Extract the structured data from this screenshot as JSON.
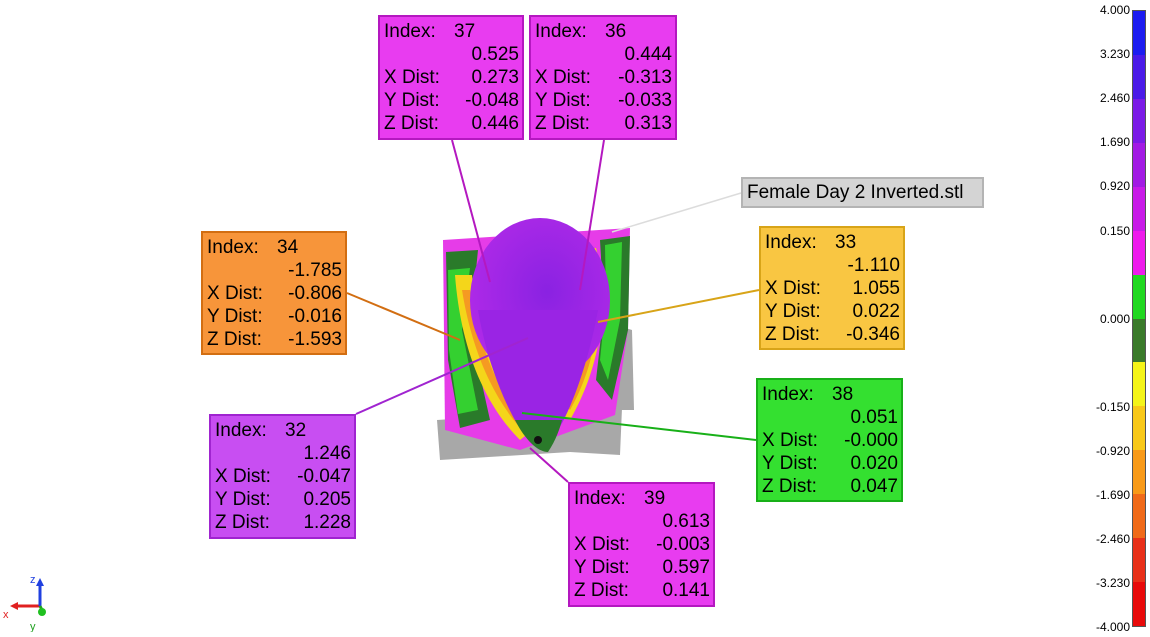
{
  "file_label": "Female Day 2 Inverted.stl",
  "callouts": [
    {
      "id": "37",
      "value": "0.525",
      "x": "0.273",
      "y": "-0.048",
      "z": "0.446",
      "color": "#e83cf0",
      "border": "#b418c0"
    },
    {
      "id": "36",
      "value": "0.444",
      "x": "-0.313",
      "y": "-0.033",
      "z": "0.313",
      "color": "#e83cf0",
      "border": "#b418c0"
    },
    {
      "id": "34",
      "value": "-1.785",
      "x": "-0.806",
      "y": "-0.016",
      "z": "-1.593",
      "color": "#f7953a",
      "border": "#d26e12"
    },
    {
      "id": "33",
      "value": "-1.110",
      "x": "1.055",
      "y": "0.022",
      "z": "-0.346",
      "color": "#f9c642",
      "border": "#d8a418"
    },
    {
      "id": "38",
      "value": "0.051",
      "x": "-0.000",
      "y": "0.020",
      "z": "0.047",
      "color": "#34e030",
      "border": "#18b018"
    },
    {
      "id": "32",
      "value": "1.246",
      "x": "-0.047",
      "y": "0.205",
      "z": "1.228",
      "color": "#c84ef2",
      "border": "#a024d0"
    },
    {
      "id": "39",
      "value": "0.613",
      "x": "-0.003",
      "y": "0.597",
      "z": "0.141",
      "color": "#e83cf0",
      "border": "#b418c0"
    }
  ],
  "labels": {
    "index": "Index:",
    "x": "X Dist:",
    "y": "Y Dist:",
    "z": "Z Dist:"
  },
  "colorbar": {
    "ticks": [
      "4.000",
      "3.230",
      "2.460",
      "1.690",
      "0.920",
      "0.150",
      "0.000",
      "-0.150",
      "-0.920",
      "-1.690",
      "-2.460",
      "-3.230",
      "-4.000"
    ],
    "colors": [
      "#1c1cf0",
      "#4a1ae8",
      "#7a1ae6",
      "#a21ae4",
      "#c81ae8",
      "#ee1aec",
      "#20d820",
      "#3a7a2a",
      "#f4f418",
      "#f8c818",
      "#f89a18",
      "#f06a18",
      "#e83018",
      "#e80a0a"
    ]
  },
  "axes": {
    "x": "x",
    "y": "y",
    "z": "z"
  }
}
